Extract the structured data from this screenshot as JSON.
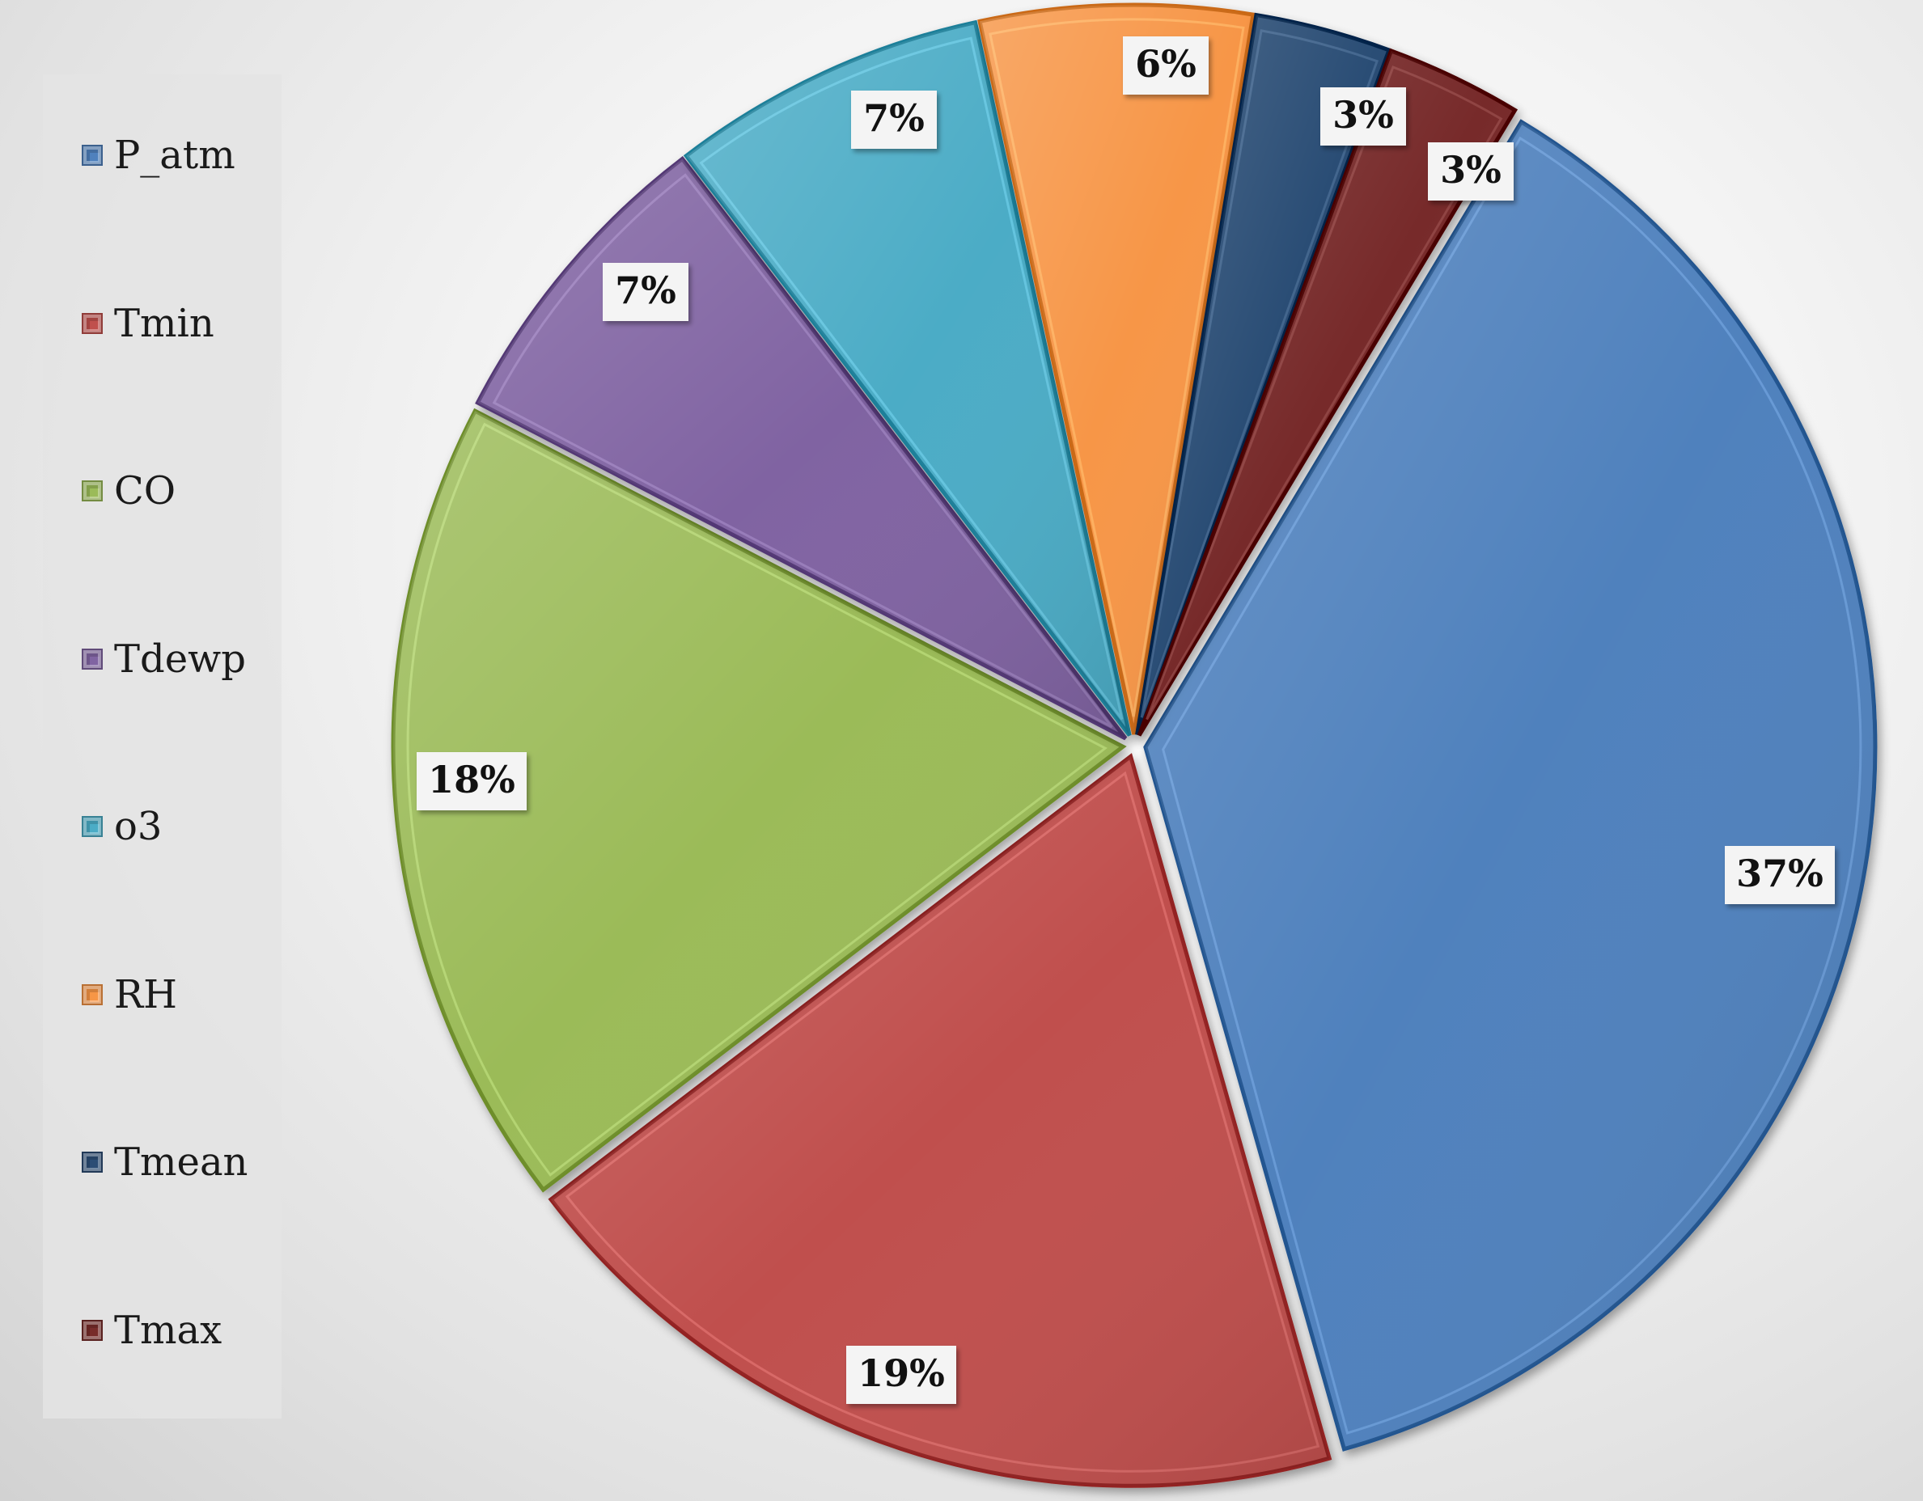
{
  "chart_data": {
    "type": "pie",
    "title": "",
    "legend_position": "left",
    "slices": [
      {
        "name": "P_atm",
        "value": 37,
        "label": "37%",
        "color": "#4F81BD"
      },
      {
        "name": "Tmin",
        "value": 19,
        "label": "19%",
        "color": "#C0504D"
      },
      {
        "name": "CO",
        "value": 18,
        "label": "18%",
        "color": "#9BBB59"
      },
      {
        "name": "Tdewp",
        "value": 7,
        "label": "7%",
        "color": "#8064A2"
      },
      {
        "name": "o3",
        "value": 7,
        "label": "7%",
        "color": "#4BACC6"
      },
      {
        "name": "RH",
        "value": 6,
        "label": "6%",
        "color": "#F79646"
      },
      {
        "name": "Tmean",
        "value": 3,
        "label": "3%",
        "color": "#2C4D75"
      },
      {
        "name": "Tmax",
        "value": 3,
        "label": "3%",
        "color": "#772C2A"
      }
    ]
  }
}
